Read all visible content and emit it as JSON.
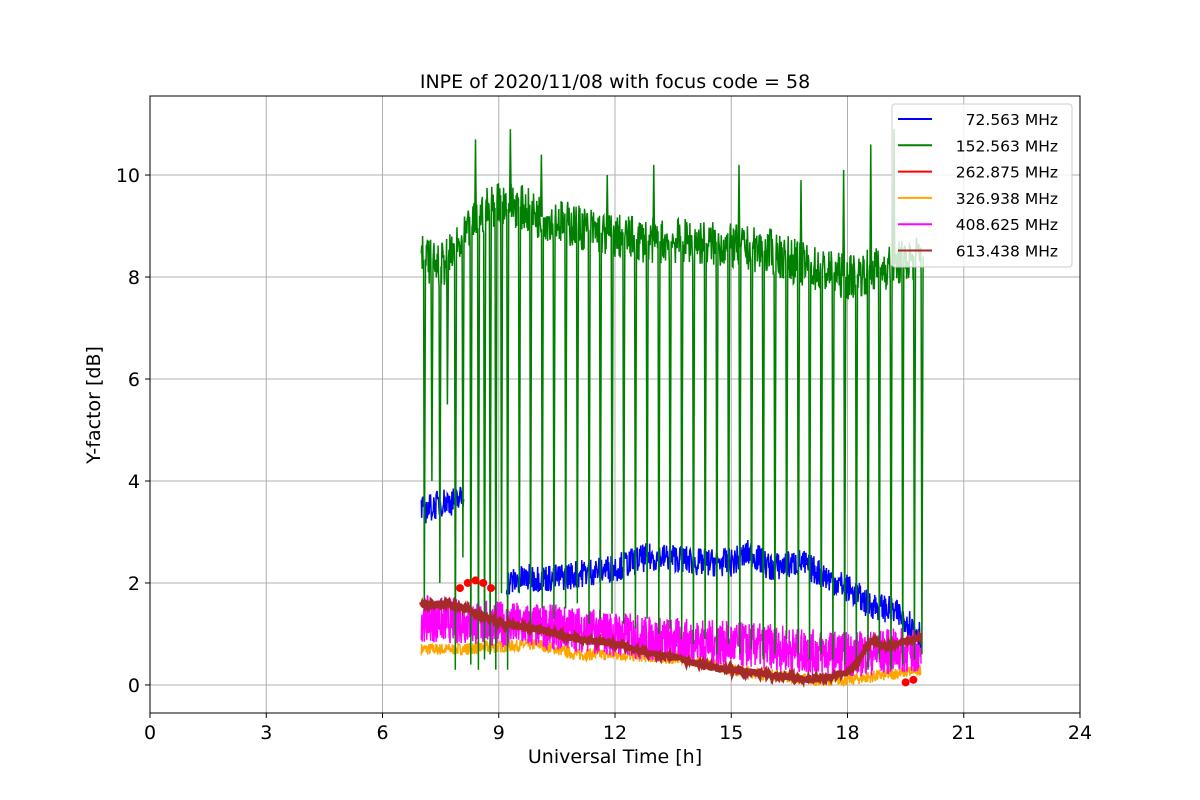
{
  "chart_data": {
    "type": "line",
    "title": "INPE of 2020/11/08 with focus code = 58",
    "xlabel": "Universal Time [h]",
    "ylabel": "Y-factor [dB]",
    "xlim": [
      0,
      24
    ],
    "ylim": [
      -0.55,
      11.55
    ],
    "xticks": [
      0,
      3,
      6,
      9,
      12,
      15,
      18,
      21,
      24
    ],
    "yticks": [
      0,
      2,
      4,
      6,
      8,
      10
    ],
    "grid": true,
    "legend_position": "top-right",
    "series": [
      {
        "name": " 72.563 MHz",
        "color": "#0000ff",
        "segments": [
          {
            "x": [
              7.0,
              7.3,
              7.6,
              7.9,
              8.1
            ],
            "y": [
              3.4,
              3.5,
              3.6,
              3.6,
              3.7
            ]
          },
          {
            "x": [
              9.2,
              9.8,
              10.5,
              11.2,
              12.0,
              12.8,
              13.5,
              14.2,
              15.0,
              15.5,
              16.0,
              16.8,
              17.5,
              18.0,
              18.5,
              19.0,
              19.5,
              19.9
            ],
            "y": [
              2.0,
              2.1,
              2.1,
              2.2,
              2.3,
              2.5,
              2.5,
              2.4,
              2.4,
              2.6,
              2.3,
              2.4,
              2.1,
              1.9,
              1.6,
              1.5,
              1.3,
              1.0
            ]
          }
        ]
      },
      {
        "name": "152.563 MHz",
        "color": "#008000",
        "baseline": [
          [
            7.0,
            8.4
          ],
          [
            7.5,
            8.2
          ],
          [
            8.0,
            8.6
          ],
          [
            8.5,
            9.2
          ],
          [
            9.0,
            9.5
          ],
          [
            9.5,
            9.4
          ],
          [
            10.0,
            9.2
          ],
          [
            11.0,
            9.0
          ],
          [
            12.0,
            8.8
          ],
          [
            13.0,
            8.7
          ],
          [
            14.0,
            8.7
          ],
          [
            15.0,
            8.6
          ],
          [
            16.0,
            8.5
          ],
          [
            17.0,
            8.2
          ],
          [
            18.0,
            8.0
          ],
          [
            19.0,
            8.2
          ],
          [
            19.9,
            8.4
          ]
        ],
        "dropouts": [
          [
            7.05,
            1.5
          ],
          [
            7.25,
            4.0
          ],
          [
            7.45,
            2.0
          ],
          [
            7.65,
            5.5
          ],
          [
            7.85,
            0.3
          ],
          [
            8.05,
            2.5
          ],
          [
            8.25,
            0.4
          ],
          [
            8.45,
            0.3
          ],
          [
            8.6,
            0.5
          ],
          [
            8.75,
            0.6
          ],
          [
            8.9,
            0.3
          ],
          [
            9.05,
            1.8
          ],
          [
            9.2,
            0.3
          ],
          [
            9.5,
            1.8
          ],
          [
            9.8,
            1.2
          ],
          [
            10.1,
            1.5
          ],
          [
            10.4,
            1.3
          ],
          [
            10.7,
            1.5
          ],
          [
            11.0,
            1.6
          ],
          [
            11.3,
            1.2
          ],
          [
            11.6,
            1.3
          ],
          [
            11.9,
            1.4
          ],
          [
            12.2,
            1.2
          ],
          [
            12.5,
            1.1
          ],
          [
            12.8,
            1.3
          ],
          [
            13.1,
            1.0
          ],
          [
            13.4,
            1.1
          ],
          [
            13.7,
            0.9
          ],
          [
            14.0,
            0.8
          ],
          [
            14.3,
            0.9
          ],
          [
            14.6,
            0.6
          ],
          [
            14.9,
            0.8
          ],
          [
            15.2,
            0.6
          ],
          [
            15.5,
            0.7
          ],
          [
            15.8,
            0.5
          ],
          [
            16.1,
            0.6
          ],
          [
            16.4,
            0.9
          ],
          [
            16.7,
            0.6
          ],
          [
            17.0,
            0.5
          ],
          [
            17.3,
            0.6
          ],
          [
            17.6,
            0.5
          ],
          [
            17.9,
            0.4
          ],
          [
            18.2,
            0.5
          ],
          [
            18.5,
            0.3
          ],
          [
            18.8,
            0.5
          ],
          [
            19.1,
            0.3
          ],
          [
            19.4,
            0.4
          ],
          [
            19.7,
            0.5
          ],
          [
            19.9,
            0.6
          ]
        ],
        "peaks": [
          [
            8.4,
            10.7
          ],
          [
            9.3,
            10.9
          ],
          [
            10.1,
            10.4
          ],
          [
            11.8,
            10.0
          ],
          [
            13.0,
            10.2
          ],
          [
            15.2,
            10.2
          ],
          [
            16.8,
            9.9
          ],
          [
            17.9,
            10.1
          ],
          [
            18.6,
            10.6
          ],
          [
            19.2,
            10.9
          ]
        ]
      },
      {
        "name": "262.875 MHz",
        "color": "#ff0000",
        "points": [
          [
            8.0,
            1.9
          ],
          [
            8.2,
            2.0
          ],
          [
            8.4,
            2.05
          ],
          [
            8.6,
            2.0
          ],
          [
            8.8,
            1.9
          ],
          [
            19.5,
            0.05
          ],
          [
            19.7,
            0.1
          ]
        ]
      },
      {
        "name": "326.938 MHz",
        "color": "#ffa500",
        "x": [
          7.0,
          8.0,
          9.0,
          10.0,
          11.0,
          12.0,
          13.0,
          14.0,
          15.0,
          16.0,
          17.0,
          18.0,
          19.0,
          19.9
        ],
        "y": [
          0.7,
          0.7,
          0.75,
          0.8,
          0.6,
          0.6,
          0.55,
          0.5,
          0.3,
          0.2,
          0.1,
          0.1,
          0.2,
          0.3
        ]
      },
      {
        "name": "408.625 MHz",
        "color": "#ff00ff",
        "x": [
          7.0,
          8.0,
          9.0,
          10.0,
          11.0,
          12.0,
          13.0,
          14.0,
          15.0,
          16.0,
          17.0,
          18.0,
          19.0,
          19.9
        ],
        "y": [
          1.3,
          1.25,
          1.2,
          1.15,
          1.1,
          1.0,
          0.9,
          0.85,
          0.8,
          0.75,
          0.65,
          0.6,
          0.65,
          0.7
        ]
      },
      {
        "name": "613.438 MHz",
        "color": "#a52a2a",
        "x": [
          7.0,
          7.5,
          8.0,
          8.5,
          9.0,
          9.5,
          10.0,
          10.5,
          11.0,
          11.5,
          12.0,
          12.5,
          13.0,
          13.5,
          14.0,
          14.5,
          15.0,
          15.5,
          16.0,
          16.5,
          17.0,
          17.5,
          18.0,
          18.3,
          18.6,
          19.0,
          19.5,
          19.9
        ],
        "y": [
          1.6,
          1.6,
          1.55,
          1.35,
          1.25,
          1.15,
          1.1,
          1.0,
          0.9,
          0.85,
          0.8,
          0.7,
          0.6,
          0.55,
          0.45,
          0.35,
          0.3,
          0.25,
          0.2,
          0.15,
          0.1,
          0.15,
          0.25,
          0.5,
          0.85,
          0.75,
          0.85,
          0.95
        ]
      }
    ]
  }
}
